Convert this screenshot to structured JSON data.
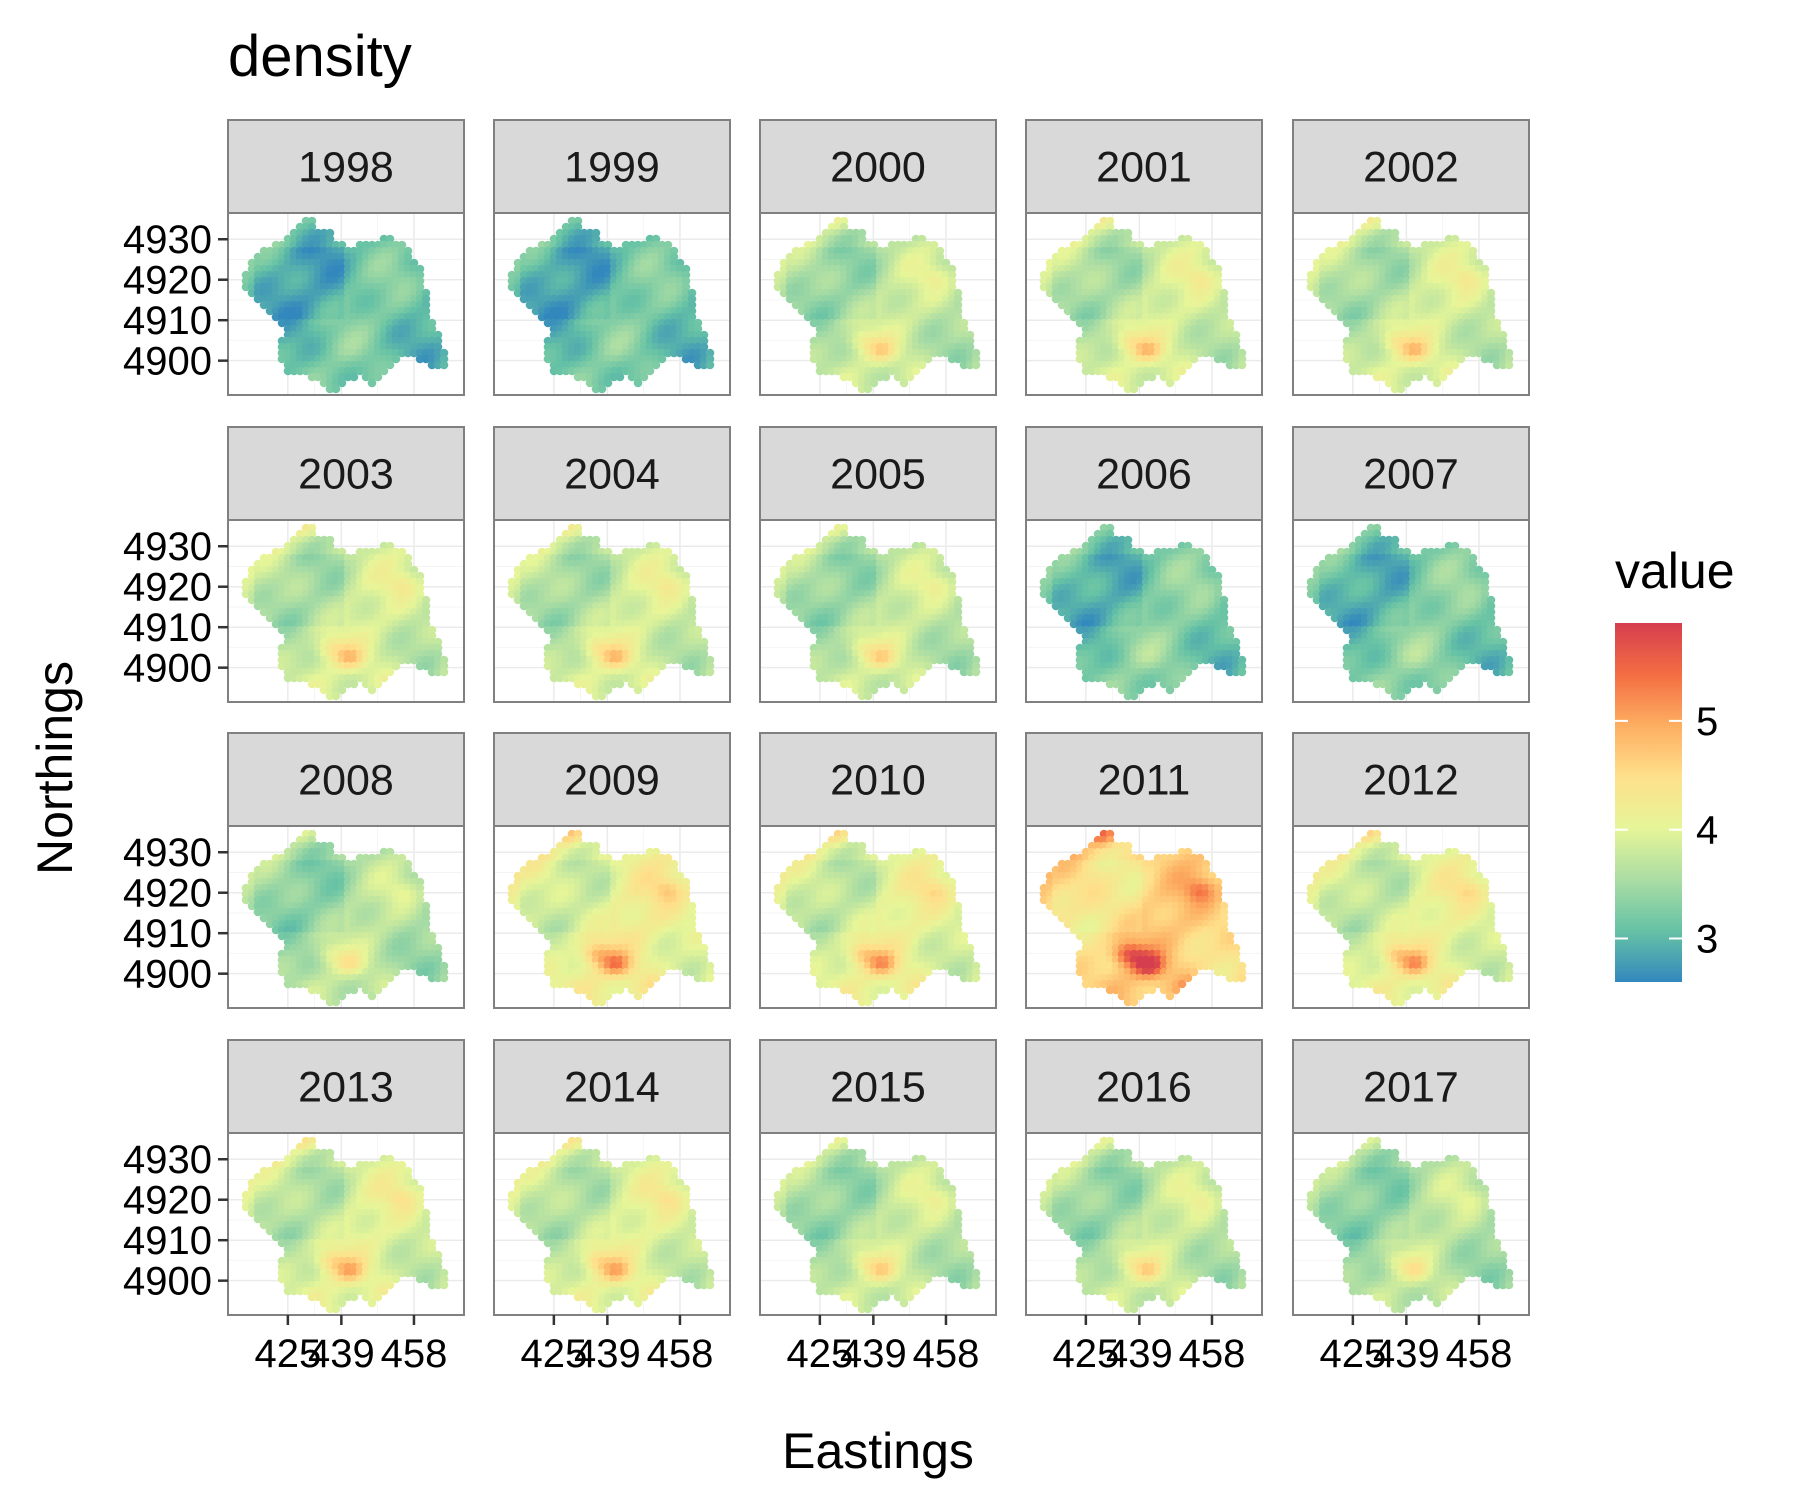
{
  "chart_data": {
    "type": "map",
    "title": "density",
    "xlabel": "Eastings",
    "ylabel": "Northings",
    "facet_labels": [
      "1998",
      "1999",
      "2000",
      "2001",
      "2002",
      "2003",
      "2004",
      "2005",
      "2006",
      "2007",
      "2008",
      "2009",
      "2010",
      "2011",
      "2012",
      "2013",
      "2014",
      "2015",
      "2016",
      "2017"
    ],
    "facet_mean_values": [
      3.1,
      3.1,
      3.7,
      3.8,
      3.8,
      3.8,
      3.8,
      3.7,
      3.2,
      3.2,
      3.6,
      4.1,
      4.0,
      4.6,
      4.0,
      3.9,
      3.9,
      3.7,
      3.7,
      3.6
    ],
    "x_ticks": [
      "425",
      "439",
      "458"
    ],
    "x_tick_values": [
      425,
      439,
      458
    ],
    "y_ticks": [
      "4930",
      "4920",
      "4910",
      "4900"
    ],
    "y_tick_values": [
      4930,
      4920,
      4910,
      4900
    ],
    "xlim": [
      413,
      469
    ],
    "ylim": [
      4893,
      4935
    ],
    "legend": {
      "title": "value",
      "ticks": [
        "5",
        "4",
        "3"
      ],
      "tick_values": [
        5,
        4,
        3
      ],
      "range": [
        2.6,
        5.9
      ],
      "palette": "Spectral",
      "colors": [
        "#3288bd",
        "#66c2a5",
        "#abdda4",
        "#e6f598",
        "#fee08b",
        "#fdae61",
        "#f46d43",
        "#d53e4f"
      ],
      "position": "right"
    },
    "grid": true
  }
}
